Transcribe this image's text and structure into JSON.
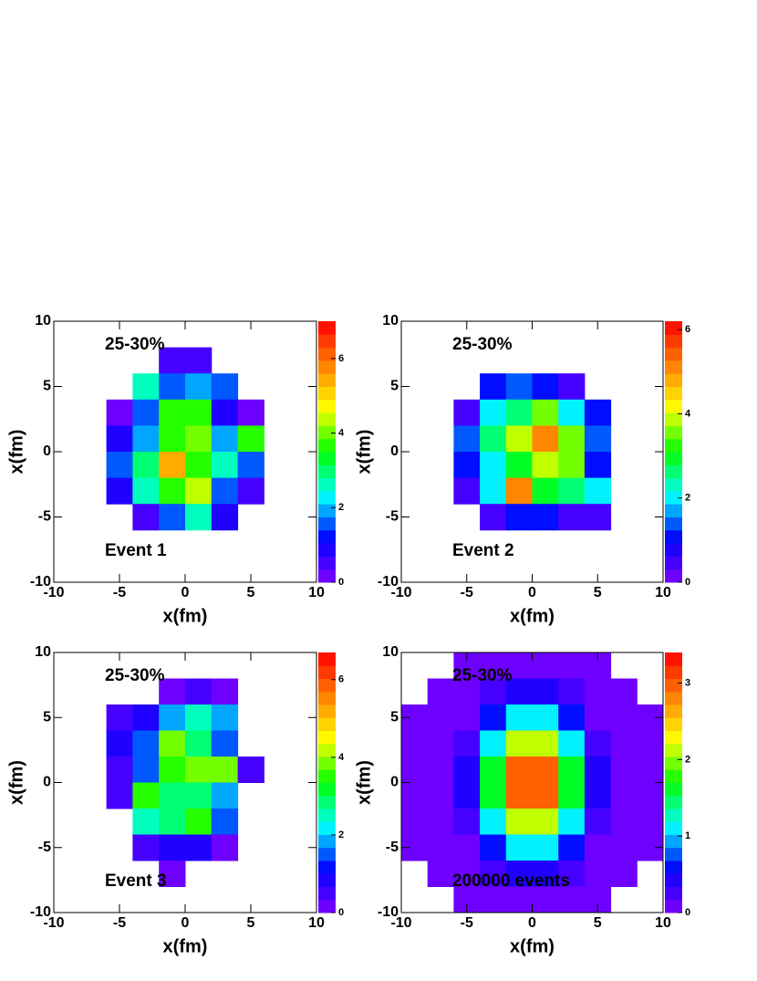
{
  "chart_data": [
    {
      "type": "heatmap",
      "annotation_top": "25-30%",
      "annotation_bottom": "Event 1",
      "xlabel": "x(fm)",
      "ylabel": "x(fm)",
      "xlim": [
        -10,
        10
      ],
      "ylim": [
        -10,
        10
      ],
      "xticks": [
        -10,
        -5,
        0,
        5,
        10
      ],
      "yticks": [
        -10,
        -5,
        0,
        5,
        10
      ],
      "zlim": [
        0,
        7
      ],
      "zticks": [
        0,
        2,
        4,
        6
      ],
      "levels": 20,
      "colorscale": [
        "#8000ff",
        "#0000ff",
        "#00ffff",
        "#00ff00",
        "#ffff00",
        "#ff8000",
        "#ff0000"
      ],
      "xbins": [
        -10,
        -8,
        -6,
        -4,
        -2,
        0,
        2,
        4,
        6,
        8,
        10
      ],
      "ybins": [
        10,
        8,
        6,
        4,
        2,
        0,
        -2,
        -4,
        -6,
        -8,
        -10
      ],
      "z": [
        [
          null,
          null,
          null,
          null,
          null,
          null,
          null,
          null,
          null,
          null
        ],
        [
          null,
          null,
          null,
          null,
          0.5,
          0.5,
          null,
          null,
          null,
          null
        ],
        [
          null,
          null,
          null,
          2.5,
          1.5,
          2,
          1.5,
          null,
          null,
          null
        ],
        [
          null,
          null,
          0.3,
          1.5,
          3.5,
          3.5,
          1,
          0.3,
          null,
          null
        ],
        [
          null,
          null,
          1,
          2,
          3.5,
          4,
          2,
          3.5,
          null,
          null
        ],
        [
          null,
          null,
          1.5,
          3,
          5.5,
          3.5,
          2.5,
          1.5,
          null,
          null
        ],
        [
          null,
          null,
          1,
          2.5,
          3.5,
          4.5,
          1.5,
          0.5,
          null,
          null
        ],
        [
          null,
          null,
          null,
          0.5,
          1.5,
          2.5,
          1,
          null,
          null,
          null
        ],
        [
          null,
          null,
          null,
          null,
          null,
          null,
          null,
          null,
          null,
          null
        ],
        [
          null,
          null,
          null,
          null,
          null,
          null,
          null,
          null,
          null,
          null
        ]
      ]
    },
    {
      "type": "heatmap",
      "annotation_top": "25-30%",
      "annotation_bottom": "Event 2",
      "xlabel": "x(fm)",
      "ylabel": "x(fm)",
      "xlim": [
        -10,
        10
      ],
      "ylim": [
        -10,
        10
      ],
      "xticks": [
        -10,
        -5,
        0,
        5,
        10
      ],
      "yticks": [
        -10,
        -5,
        0,
        5,
        10
      ],
      "zlim": [
        0,
        6.2
      ],
      "zticks": [
        0,
        2,
        4,
        6
      ],
      "levels": 20,
      "colorscale": [
        "#8000ff",
        "#0000ff",
        "#00ffff",
        "#00ff00",
        "#ffff00",
        "#ff8000",
        "#ff0000"
      ],
      "xbins": [
        -10,
        -8,
        -6,
        -4,
        -2,
        0,
        2,
        4,
        6,
        8,
        10
      ],
      "ybins": [
        10,
        8,
        6,
        4,
        2,
        0,
        -2,
        -4,
        -6,
        -8,
        -10
      ],
      "z": [
        [
          null,
          null,
          null,
          null,
          null,
          null,
          null,
          null,
          null,
          null
        ],
        [
          null,
          null,
          null,
          null,
          null,
          null,
          null,
          null,
          null,
          null
        ],
        [
          null,
          null,
          null,
          1,
          1.5,
          1,
          0.5,
          null,
          null,
          null
        ],
        [
          null,
          null,
          0.5,
          2,
          2.5,
          3.5,
          2,
          1,
          null,
          null
        ],
        [
          null,
          null,
          1.5,
          2.5,
          4,
          5,
          3.5,
          1.5,
          null,
          null
        ],
        [
          null,
          null,
          1,
          2,
          3,
          4,
          3.5,
          1,
          null,
          null
        ],
        [
          null,
          null,
          0.5,
          2,
          5,
          3,
          2.5,
          2,
          null,
          null
        ],
        [
          null,
          null,
          null,
          0.5,
          1,
          1,
          0.5,
          0.5,
          null,
          null
        ],
        [
          null,
          null,
          null,
          null,
          null,
          null,
          null,
          null,
          null,
          null
        ],
        [
          null,
          null,
          null,
          null,
          null,
          null,
          null,
          null,
          null,
          null
        ]
      ]
    },
    {
      "type": "heatmap",
      "annotation_top": "25-30%",
      "annotation_bottom": "Event 3",
      "xlabel": "x(fm)",
      "ylabel": "x(fm)",
      "xlim": [
        -10,
        10
      ],
      "ylim": [
        -10,
        10
      ],
      "xticks": [
        -10,
        -5,
        0,
        5,
        10
      ],
      "yticks": [
        -10,
        -5,
        0,
        5,
        10
      ],
      "zlim": [
        0,
        6.7
      ],
      "zticks": [
        0,
        2,
        4,
        6
      ],
      "levels": 20,
      "colorscale": [
        "#8000ff",
        "#0000ff",
        "#00ffff",
        "#00ff00",
        "#ffff00",
        "#ff8000",
        "#ff0000"
      ],
      "xbins": [
        -10,
        -8,
        -6,
        -4,
        -2,
        0,
        2,
        4,
        6,
        8,
        10
      ],
      "ybins": [
        10,
        8,
        6,
        4,
        2,
        0,
        -2,
        -4,
        -6,
        -8,
        -10
      ],
      "z": [
        [
          null,
          null,
          null,
          null,
          null,
          null,
          null,
          null,
          null,
          null
        ],
        [
          null,
          null,
          null,
          null,
          0.3,
          0.5,
          0.3,
          null,
          null,
          null
        ],
        [
          null,
          null,
          0.5,
          1,
          2,
          2.5,
          2,
          null,
          null,
          null
        ],
        [
          null,
          null,
          1,
          1.5,
          4,
          3,
          1.5,
          null,
          null,
          null
        ],
        [
          null,
          null,
          0.5,
          1.5,
          3.5,
          4,
          4,
          0.5,
          null,
          null
        ],
        [
          null,
          null,
          0.5,
          3.5,
          3,
          3,
          2,
          null,
          null,
          null
        ],
        [
          null,
          null,
          null,
          2.5,
          3,
          3.5,
          1.5,
          null,
          null,
          null
        ],
        [
          null,
          null,
          null,
          0.5,
          1,
          1,
          0.3,
          null,
          null,
          null
        ],
        [
          null,
          null,
          null,
          null,
          0.3,
          null,
          null,
          null,
          null,
          null
        ],
        [
          null,
          null,
          null,
          null,
          null,
          null,
          null,
          null,
          null,
          null
        ]
      ]
    },
    {
      "type": "heatmap",
      "annotation_top": "25-30%",
      "annotation_bottom": "200000 events",
      "xlabel": "x(fm)",
      "ylabel": "x(fm)",
      "xlim": [
        -10,
        10
      ],
      "ylim": [
        -10,
        10
      ],
      "xticks": [
        -10,
        -5,
        0,
        5,
        10
      ],
      "yticks": [
        -10,
        -5,
        0,
        5,
        10
      ],
      "zlim": [
        0,
        3.4
      ],
      "zticks": [
        0,
        1,
        2,
        3
      ],
      "levels": 20,
      "colorscale": [
        "#8000ff",
        "#0000ff",
        "#00ffff",
        "#00ff00",
        "#ffff00",
        "#ff8000",
        "#ff0000"
      ],
      "xbins": [
        -10,
        -8,
        -6,
        -4,
        -2,
        0,
        2,
        4,
        6,
        8,
        10
      ],
      "ybins": [
        10,
        8,
        6,
        4,
        2,
        0,
        -2,
        -4,
        -6,
        -8,
        -10
      ],
      "z": [
        [
          null,
          null,
          0.05,
          0.06,
          0.11,
          0.11,
          0.06,
          0.05,
          null,
          null
        ],
        [
          null,
          0.05,
          0.06,
          0.22,
          0.41,
          0.41,
          0.22,
          0.06,
          0.05,
          null
        ],
        [
          0.05,
          0.05,
          0.16,
          0.58,
          1.1,
          1.1,
          0.58,
          0.16,
          0.05,
          0.05
        ],
        [
          0.05,
          0.05,
          0.31,
          1.11,
          2.11,
          2.11,
          1.11,
          0.31,
          0.05,
          0.05
        ],
        [
          0.05,
          0.06,
          0.43,
          1.54,
          2.92,
          2.92,
          1.54,
          0.43,
          0.06,
          0.05
        ],
        [
          0.05,
          0.06,
          0.43,
          1.54,
          2.92,
          2.92,
          1.54,
          0.43,
          0.06,
          0.05
        ],
        [
          0.05,
          0.05,
          0.31,
          1.11,
          2.11,
          2.11,
          1.11,
          0.31,
          0.05,
          0.05
        ],
        [
          0.05,
          0.05,
          0.16,
          0.58,
          1.1,
          1.1,
          0.58,
          0.16,
          0.05,
          0.05
        ],
        [
          null,
          0.05,
          0.06,
          0.22,
          0.41,
          0.41,
          0.22,
          0.06,
          0.05,
          null
        ],
        [
          null,
          null,
          0.05,
          0.06,
          0.11,
          0.11,
          0.06,
          0.05,
          null,
          null
        ]
      ]
    }
  ]
}
